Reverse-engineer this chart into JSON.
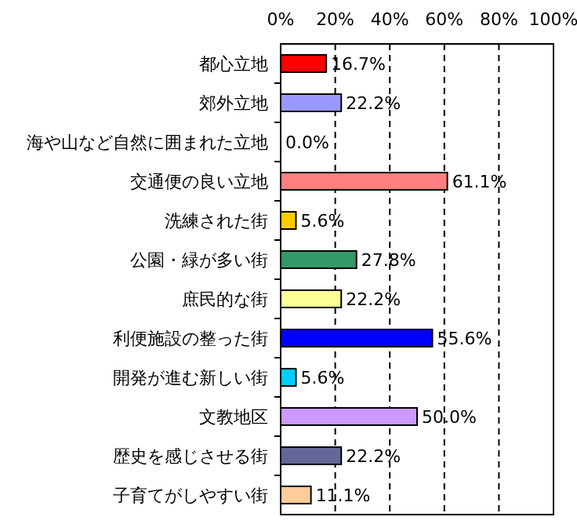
{
  "chart_data": {
    "type": "bar",
    "orientation": "horizontal",
    "categories": [
      "都心立地",
      "郊外立地",
      "海や山など自然に囲まれた立地",
      "交通便の良い立地",
      "洗練された街",
      "公園・緑が多い街",
      "庶民的な街",
      "利便施設の整った街",
      "開発が進む新しい街",
      "文教地区",
      "歴史を感じさせる街",
      "子育てがしやすい街"
    ],
    "values": [
      16.7,
      22.2,
      0.0,
      61.1,
      5.6,
      27.8,
      22.2,
      55.6,
      5.6,
      50.0,
      22.2,
      11.1
    ],
    "colors": [
      "#ff0000",
      "#9999ff",
      "#ffffff",
      "#ff8080",
      "#ffcc00",
      "#339966",
      "#ffff99",
      "#0000ff",
      "#00ccff",
      "#cc99ff",
      "#666699",
      "#ffcc99"
    ],
    "value_labels": [
      "16.7%",
      "22.2%",
      "0.0%",
      "61.1%",
      "5.6%",
      "27.8%",
      "22.2%",
      "55.6%",
      "5.6%",
      "50.0%",
      "22.2%",
      "11.1%"
    ],
    "xlim": [
      0,
      100
    ],
    "xticks": [
      {
        "value": 0,
        "label": "0%"
      },
      {
        "value": 20,
        "label": "20%"
      },
      {
        "value": 40,
        "label": "40%"
      },
      {
        "value": 60,
        "label": "60%"
      },
      {
        "value": 80,
        "label": "80%"
      },
      {
        "value": 100,
        "label": "100%"
      }
    ],
    "grid": "x"
  }
}
